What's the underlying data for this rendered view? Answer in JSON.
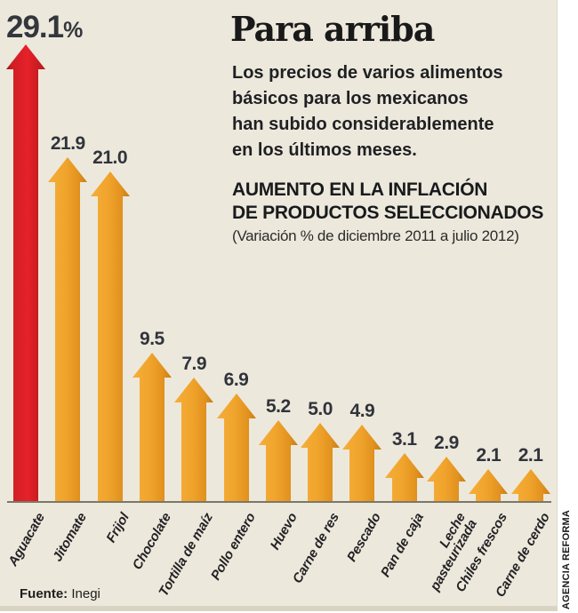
{
  "header": {
    "title": "Para arriba",
    "intro": "Los precios de varios alimentos\nbásicos para los mexicanos\nhan subido considerablemente\nen los últimos meses.",
    "subtitle_heading": "AUMENTO EN LA INFLACIÓN\nDE PRODUCTOS SELECCIONADOS",
    "subtitle_note": "(Variación % de diciembre 2011 a julio 2012)"
  },
  "chart_data": {
    "type": "bar",
    "bar_shape": "up-arrow",
    "title": "AUMENTO EN LA INFLACIÓN DE PRODUCTOS SELECCIONADOS",
    "subtitle": "Variación % de diciembre 2011 a julio 2012",
    "categories": [
      "Aguacate",
      "Jitomate",
      "Frijol",
      "Chocolate",
      "Tortilla de maíz",
      "Pollo entero",
      "Huevo",
      "Carne de res",
      "Pescado",
      "Pan de caja",
      "Leche\npasteurizada",
      "Chiles frescos",
      "Carne de cerdo"
    ],
    "values": [
      29.1,
      21.9,
      21.0,
      9.5,
      7.9,
      6.9,
      5.2,
      5.0,
      4.9,
      3.1,
      2.9,
      2.1,
      2.1
    ],
    "value_labels": [
      "29.1",
      "21.9",
      "21.0",
      "9.5",
      "7.9",
      "6.9",
      "5.2",
      "5.0",
      "4.9",
      "3.1",
      "2.9",
      "2.1",
      "2.1"
    ],
    "percent_suffix": "%",
    "highlight_index": 0,
    "ylim": [
      0,
      30
    ],
    "grid": false,
    "legend": false,
    "colors": {
      "bar": "#f0a42c",
      "bar_light": "#f5ae38",
      "bar_dark": "#c87d15",
      "highlight": "#e2212a",
      "highlight_light": "#e62129",
      "highlight_dark": "#8c1519",
      "background": "#ede8dc",
      "baseline": "#7c7868",
      "text": "#30343a"
    }
  },
  "footer": {
    "source_label": "Fuente:",
    "source_value": "Inegi",
    "credit": "AGENCIA REFORMA"
  }
}
